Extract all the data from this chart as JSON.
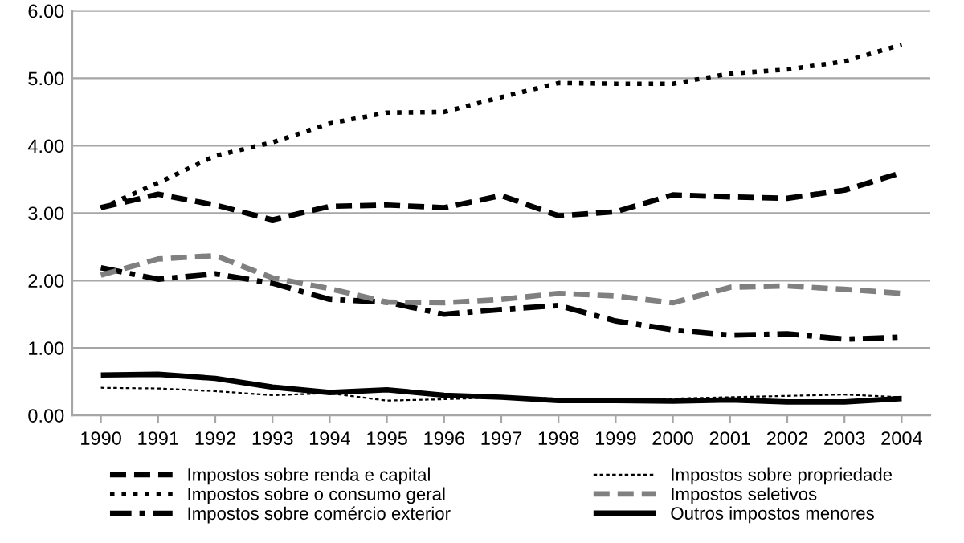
{
  "chart_data": {
    "type": "line",
    "categories": [
      "1990",
      "1991",
      "1992",
      "1993",
      "1994",
      "1995",
      "1996",
      "1997",
      "1998",
      "1999",
      "2000",
      "2001",
      "2002",
      "2003",
      "2004"
    ],
    "series": [
      {
        "name": "Impostos sobre renda e capital",
        "color": "#000000",
        "line_style": "dashed",
        "values": [
          3.08,
          3.28,
          3.12,
          2.9,
          3.1,
          3.12,
          3.08,
          3.26,
          2.96,
          3.02,
          3.27,
          3.24,
          3.22,
          3.34,
          3.6
        ]
      },
      {
        "name": "Impostos sobre o consumo geral",
        "color": "#000000",
        "line_style": "dotted",
        "values": [
          3.07,
          3.45,
          3.85,
          4.05,
          4.33,
          4.49,
          4.5,
          4.72,
          4.93,
          4.92,
          4.92,
          5.07,
          5.13,
          5.25,
          5.5
        ]
      },
      {
        "name": "Impostos sobre comércio exterior",
        "color": "#000000",
        "line_style": "dashdot",
        "values": [
          2.19,
          2.02,
          2.1,
          1.96,
          1.72,
          1.68,
          1.5,
          1.57,
          1.63,
          1.4,
          1.27,
          1.19,
          1.21,
          1.13,
          1.16
        ]
      },
      {
        "name": "Impostos sobre propriedade",
        "color": "#000000",
        "line_style": "dashed",
        "values": [
          0.41,
          0.4,
          0.36,
          0.3,
          0.33,
          0.22,
          0.24,
          0.27,
          0.25,
          0.25,
          0.25,
          0.27,
          0.29,
          0.31,
          0.27
        ]
      },
      {
        "name": "Impostos seletivos",
        "color": "#808080",
        "line_style": "dashed",
        "values": [
          2.08,
          2.32,
          2.37,
          2.04,
          1.88,
          1.68,
          1.67,
          1.72,
          1.81,
          1.77,
          1.67,
          1.9,
          1.92,
          1.87,
          1.81
        ]
      },
      {
        "name": "Outros impostos menores",
        "color": "#000000",
        "line_style": "solid",
        "values": [
          0.6,
          0.61,
          0.55,
          0.42,
          0.34,
          0.38,
          0.3,
          0.27,
          0.22,
          0.22,
          0.21,
          0.23,
          0.2,
          0.2,
          0.25
        ]
      }
    ],
    "ylim": [
      0,
      6
    ],
    "yticks": [
      {
        "value": 0,
        "label": "0.00"
      },
      {
        "value": 1,
        "label": "1.00"
      },
      {
        "value": 2,
        "label": "2.00"
      },
      {
        "value": 3,
        "label": "3.00"
      },
      {
        "value": 4,
        "label": "4.00"
      },
      {
        "value": 5,
        "label": "5.00"
      },
      {
        "value": 6,
        "label": "6.00"
      }
    ],
    "grid": "y",
    "legend": "bottom"
  }
}
